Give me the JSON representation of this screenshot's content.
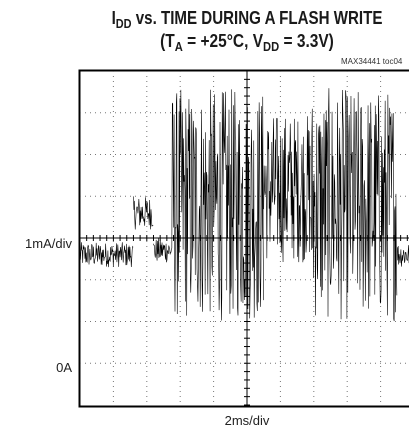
{
  "title": {
    "line1_main": "I",
    "line1_sub": "DD",
    "line1_rest": " vs. TIME DURING A FLASH WRITE",
    "line2_a": "(T",
    "line2_a_sub": "A",
    "line2_b": " = +25°C, V",
    "line2_b_sub": "DD",
    "line2_c": " = 3.3V)"
  },
  "figure_code": "MAX34441 toc04",
  "ylabel_scale": "1mA/div",
  "ylabel_zero": "0A",
  "xlabel": "2ms/div",
  "chart_data": {
    "type": "line",
    "xlabel": "2ms/div",
    "ylabels": [
      "1mA/div",
      "0A"
    ],
    "x_unit": "ms",
    "y_unit": "mA",
    "x_per_div": 2,
    "y_per_div": 1,
    "xlim": [
      0,
      20
    ],
    "ylim": [
      -1,
      7
    ],
    "grid": true,
    "trace_color": "#000000",
    "segments": [
      {
        "x0": 0.0,
        "x1": 3.2,
        "center": 2.6,
        "spread": 0.6,
        "note": "idle"
      },
      {
        "x0": 3.2,
        "x1": 4.4,
        "center": 3.6,
        "spread": 0.8,
        "note": "pulse"
      },
      {
        "x0": 4.4,
        "x1": 5.5,
        "center": 2.7,
        "spread": 0.6,
        "note": "idle"
      },
      {
        "x0": 5.5,
        "x1": 11.0,
        "center": 3.8,
        "spread": 5.6,
        "note": "write burst"
      },
      {
        "x0": 11.0,
        "x1": 13.8,
        "center": 4.2,
        "spread": 3.6,
        "note": "write burst mid"
      },
      {
        "x0": 13.8,
        "x1": 19.0,
        "center": 3.8,
        "spread": 5.6,
        "note": "write burst"
      },
      {
        "x0": 19.0,
        "x1": 19.9,
        "center": 2.6,
        "spread": 0.6,
        "note": "idle"
      },
      {
        "x0": 19.9,
        "x1": 20.6,
        "center": 3.6,
        "spread": 0.8,
        "note": "pulse"
      }
    ]
  }
}
